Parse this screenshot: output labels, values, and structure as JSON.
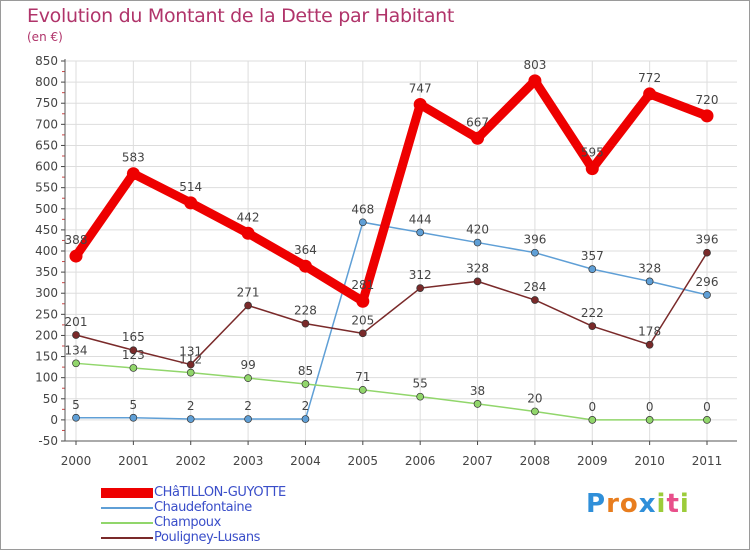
{
  "chart_data": {
    "type": "line",
    "title": "Evolution du Montant de la Dette par Habitant",
    "unit_label": "(en €)",
    "ylim": [
      -50,
      850
    ],
    "ytick_step": 50,
    "grid": true,
    "categories": [
      "2000",
      "2001",
      "2002",
      "2003",
      "2004",
      "2005",
      "2006",
      "2007",
      "2008",
      "2009",
      "2010",
      "2011"
    ],
    "series": [
      {
        "name": "CHâTILLON-GUYOTTE",
        "color": "#ee0000",
        "thick": true,
        "values": [
          388,
          583,
          514,
          442,
          364,
          281,
          747,
          667,
          803,
          595,
          772,
          720
        ]
      },
      {
        "name": "Chaudefontaine",
        "color": "#5f9fd6",
        "thick": false,
        "values": [
          5,
          5,
          2,
          2,
          2,
          468,
          444,
          420,
          396,
          357,
          328,
          296
        ]
      },
      {
        "name": "Champoux",
        "color": "#91d66b",
        "thick": false,
        "values": [
          134,
          123,
          112,
          99,
          85,
          71,
          55,
          38,
          20,
          0,
          0,
          0
        ]
      },
      {
        "name": "Pouligney-Lusans",
        "color": "#7a2a2a",
        "thick": false,
        "values": [
          201,
          165,
          131,
          271,
          228,
          205,
          312,
          328,
          284,
          222,
          178,
          396
        ]
      }
    ],
    "legend_position": "bottom-left"
  },
  "logo": {
    "text": "Proxiti",
    "letters": [
      "P",
      "r",
      "o",
      "x",
      "i",
      "t",
      "i"
    ],
    "colors": [
      "#2f8fd9",
      "#e87d1e",
      "#e87d1e",
      "#2f8fd9",
      "#9ccc3a",
      "#e84f8a",
      "#9ccc3a"
    ]
  }
}
